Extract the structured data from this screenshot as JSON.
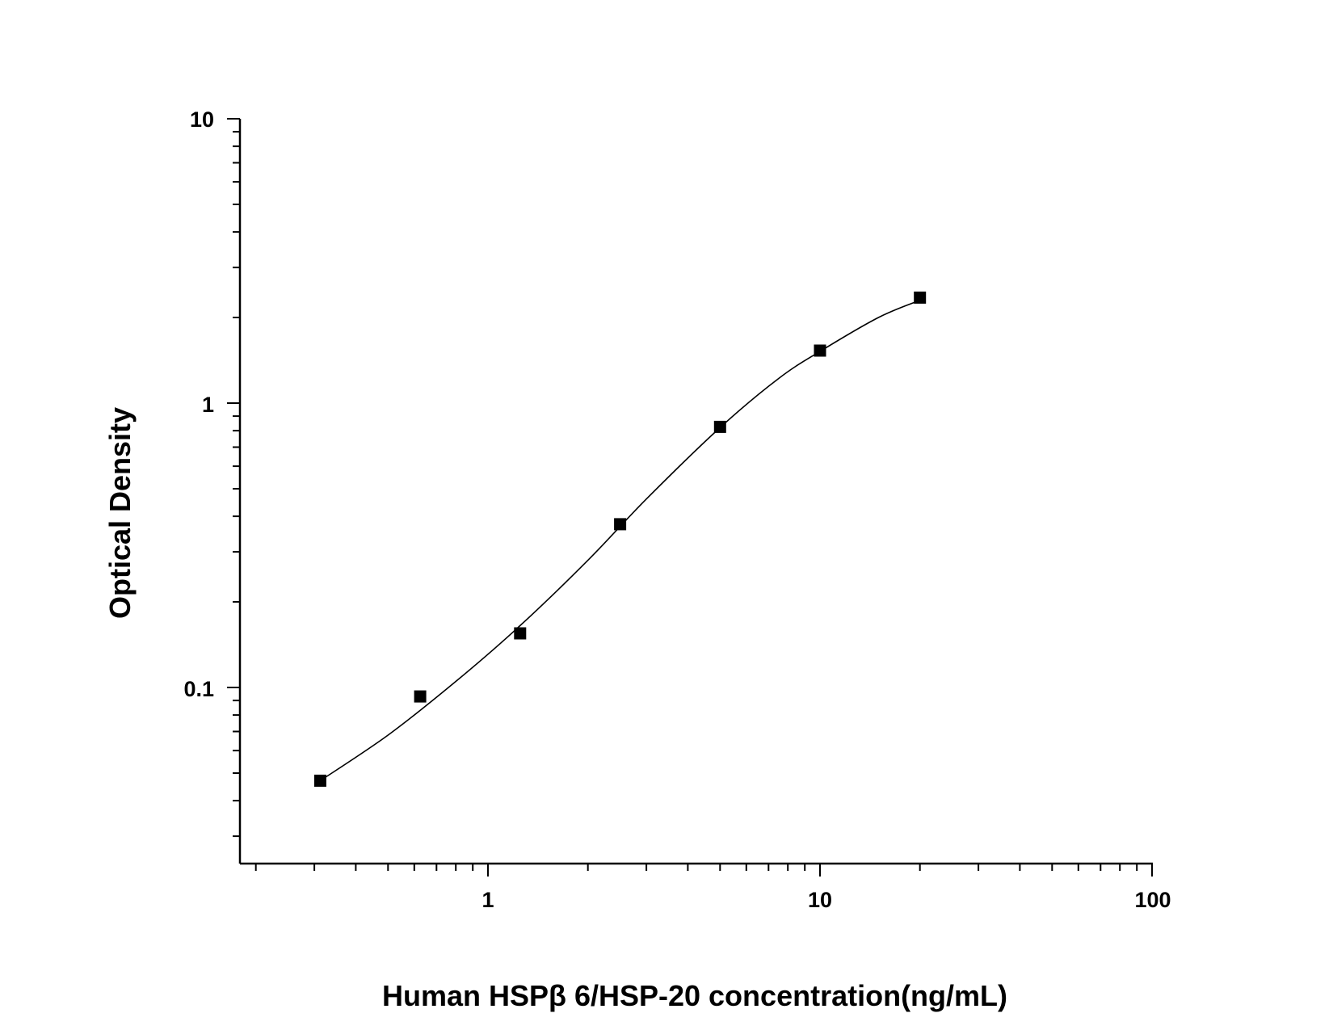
{
  "chart_data": {
    "type": "scatter",
    "title": "",
    "xlabel": "Human HSPβ 6/HSP-20 concentration(ng/mL)",
    "ylabel": "Optical Density",
    "xscale": "log",
    "yscale": "log",
    "xlim": [
      0.2,
      100
    ],
    "ylim": [
      0.028,
      10
    ],
    "grid": false,
    "x_tick_labels": [
      "1",
      "10",
      "100"
    ],
    "y_tick_labels": [
      "10",
      "1",
      "0.1"
    ],
    "series": [
      {
        "marker": "square",
        "x": [
          0.3125,
          0.625,
          1.25,
          2.5,
          5,
          10,
          20
        ],
        "y": [
          0.047,
          0.093,
          0.155,
          0.375,
          0.825,
          1.53,
          2.35
        ]
      }
    ],
    "fit_curve": {
      "type": "four-parameter-logistic",
      "x": [
        0.3125,
        0.5,
        0.8,
        1.25,
        2.0,
        3.0,
        5.0,
        7.5,
        10,
        15,
        20
      ],
      "y": [
        0.047,
        0.068,
        0.105,
        0.165,
        0.28,
        0.46,
        0.82,
        1.22,
        1.52,
        2.0,
        2.3
      ]
    }
  }
}
